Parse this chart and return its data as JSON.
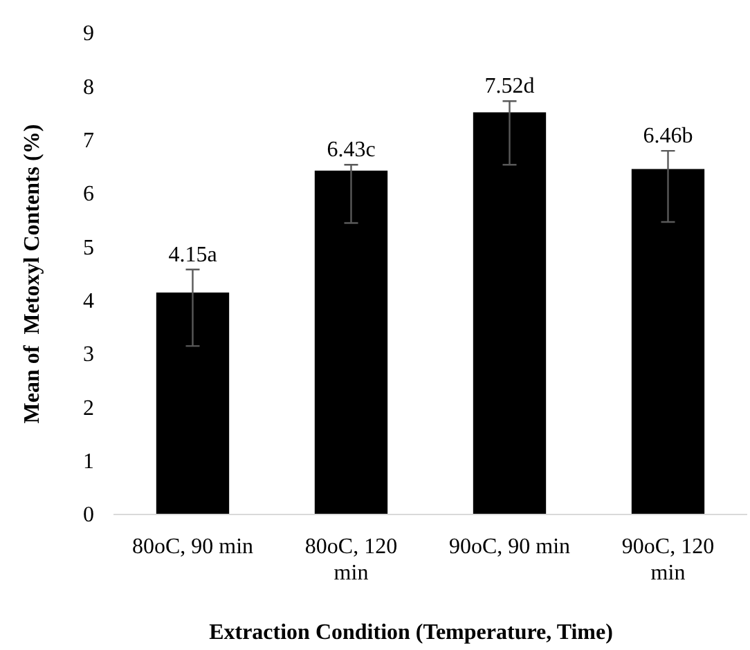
{
  "chart_data": {
    "type": "bar",
    "xlabel": "Extraction Condition (Temperature, Time)",
    "ylabel": "Mean of  Metoxyl Contents (%)",
    "categories": [
      "80oC, 90 min",
      "80oC, 120 min",
      "90oC, 90 min",
      "90oC, 120 min"
    ],
    "values": [
      4.15,
      6.43,
      7.52,
      6.46
    ],
    "color": "#000000",
    "value_labels": [
      "4.15a",
      "6.43c",
      "7.52d",
      "6.46b"
    ],
    "errors": [
      [
        3.15,
        4.58
      ],
      [
        5.45,
        6.54
      ],
      [
        6.54,
        7.73
      ],
      [
        5.47,
        6.8
      ]
    ],
    "ylim": [
      0,
      9
    ],
    "yticks": [
      0,
      1,
      2,
      3,
      4,
      5,
      6,
      7,
      8,
      9
    ],
    "grid": false
  }
}
